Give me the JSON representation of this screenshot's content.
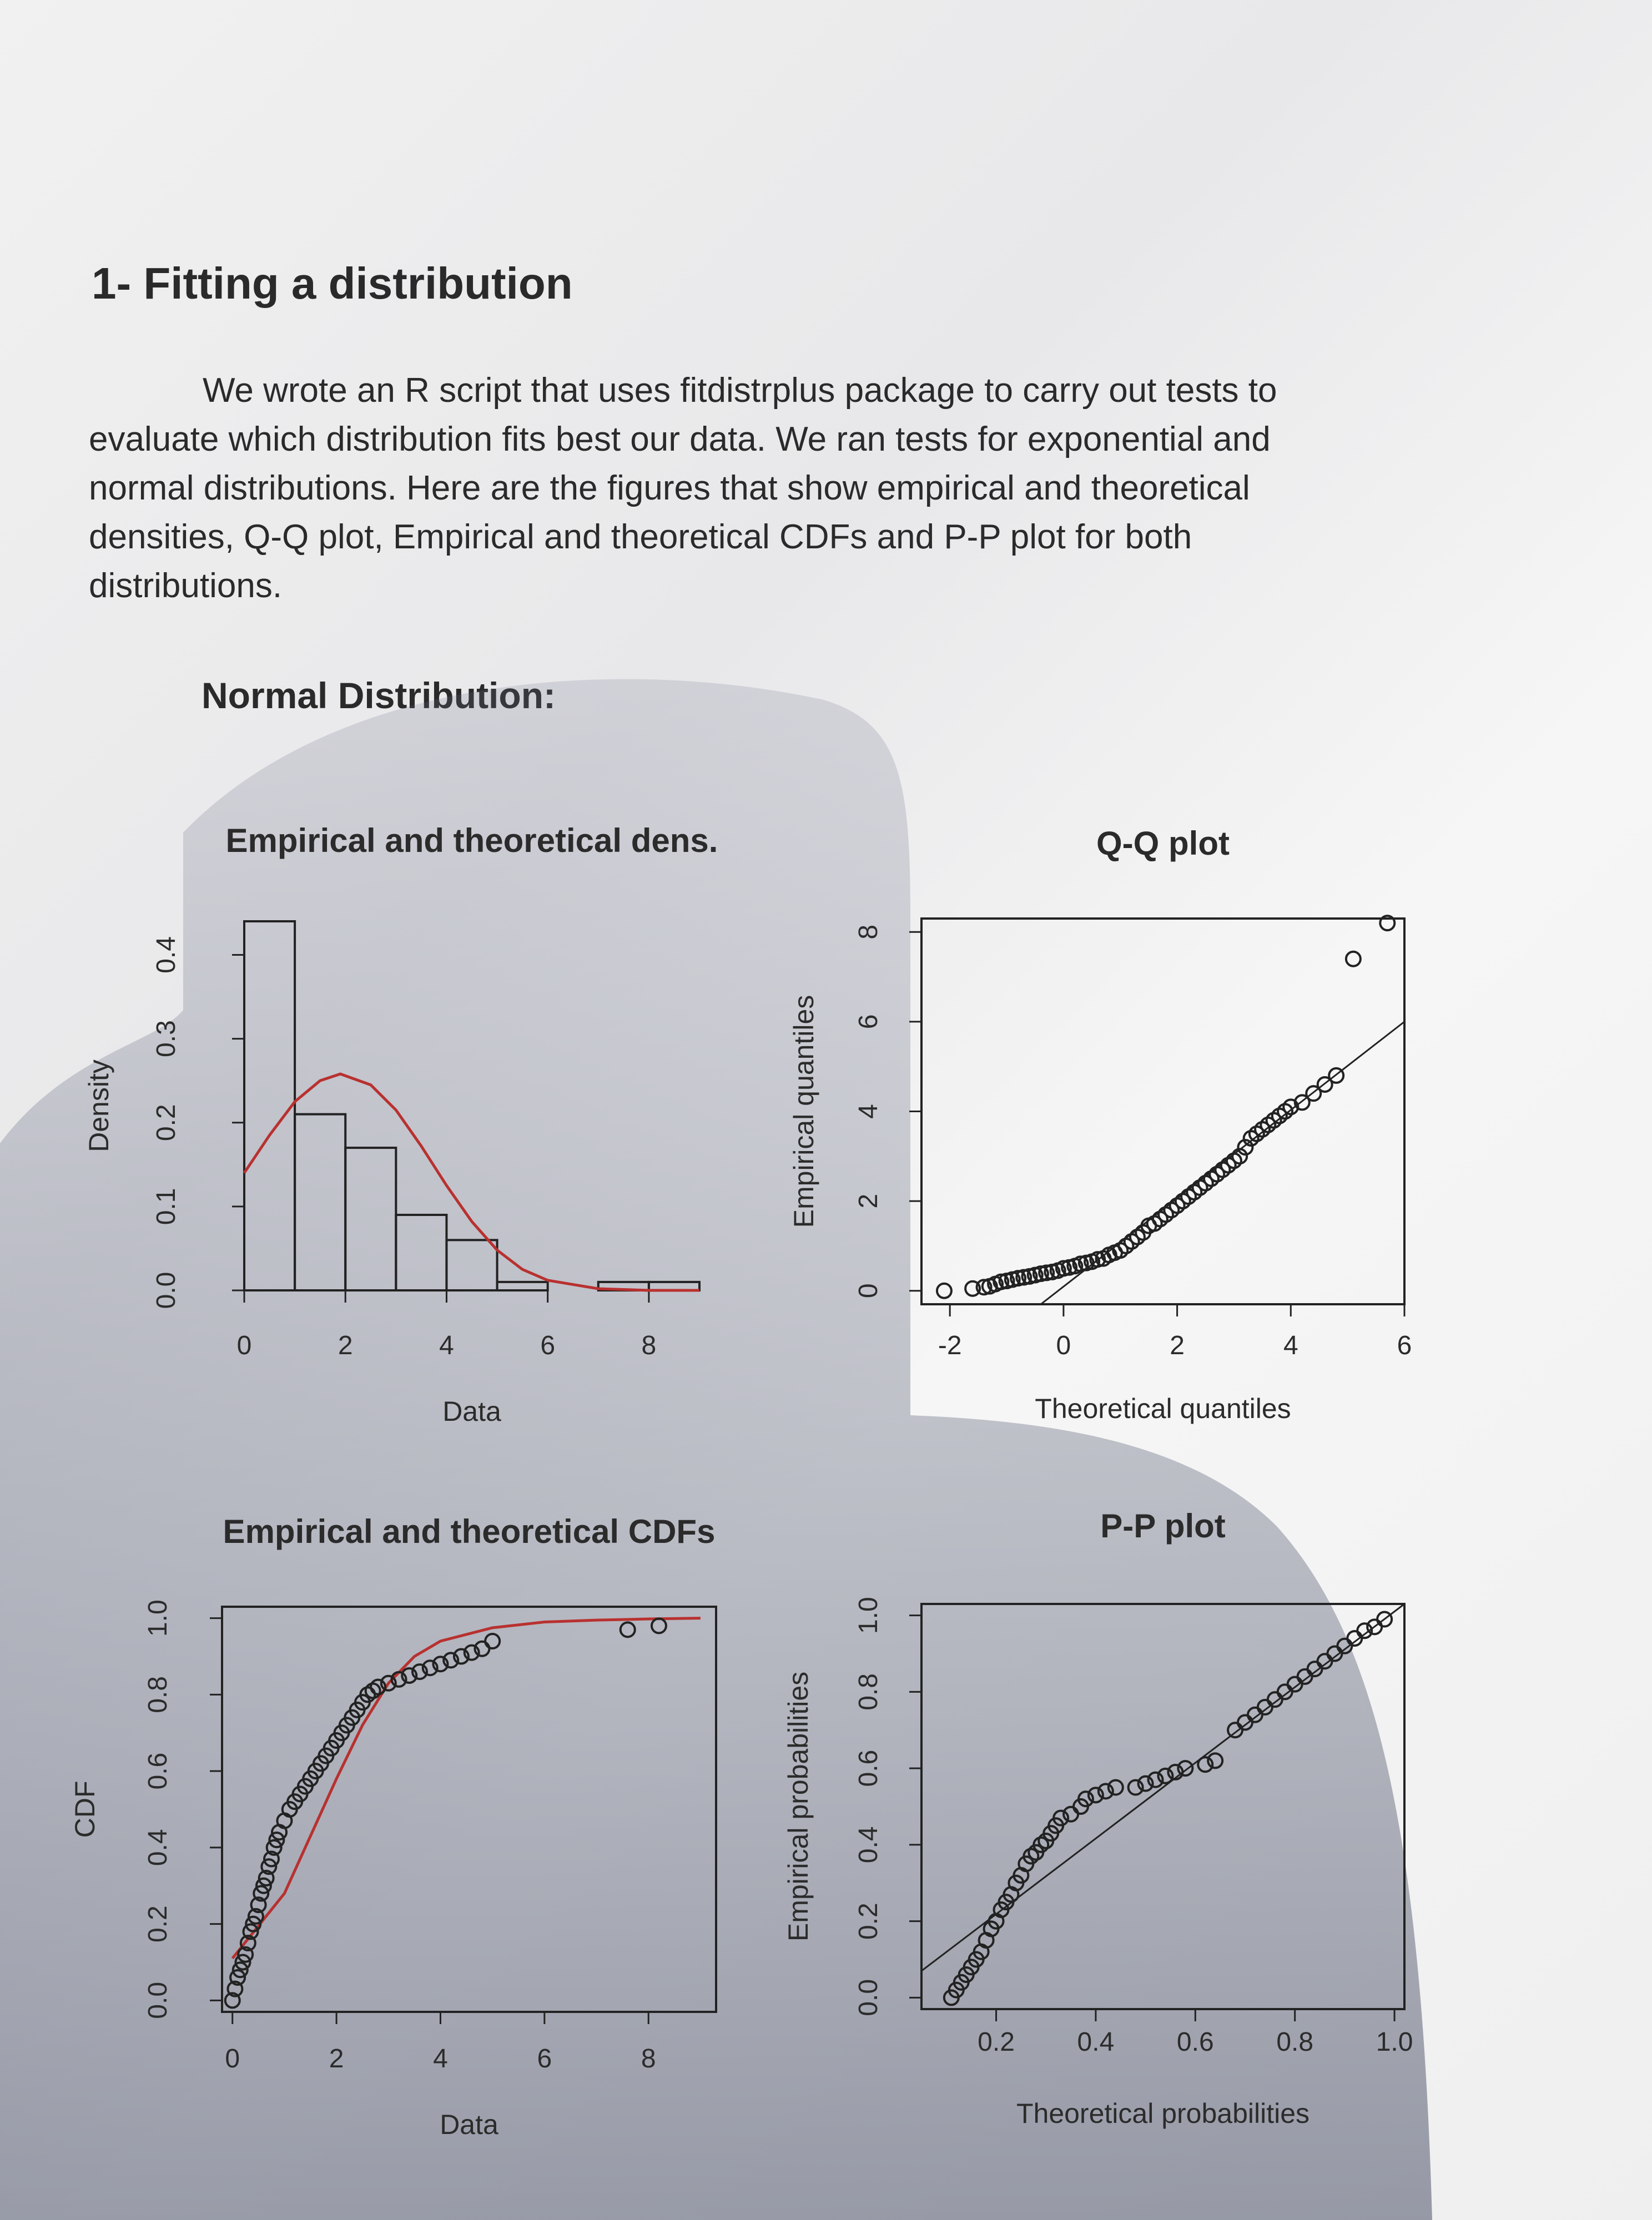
{
  "heading": "1- Fitting a distribution",
  "intro_text": "We wrote an R script that uses fitdistrplus package to carry out tests to evaluate which distribution fits best our data. We ran tests for exponential and normal distributions. Here are the figures that show empirical and theoretical densities, Q-Q plot, Empirical and theoretical CDFs and P-P plot for both distributions.",
  "subheading": "Normal Distribution:",
  "colors": {
    "fit_curve": "#b8312f",
    "ink": "#222222",
    "shadow": "#2f3650"
  },
  "chart_data": [
    {
      "type": "bar",
      "title": "Empirical and theoretical dens.",
      "xlabel": "Data",
      "ylabel": "Density",
      "xlim": [
        0,
        9
      ],
      "ylim": [
        0,
        0.44
      ],
      "xticks": [
        "0",
        "2",
        "4",
        "6",
        "8"
      ],
      "yticks": [
        "0.0",
        "0.1",
        "0.2",
        "0.3",
        "0.4"
      ],
      "bins": [
        [
          0,
          1
        ],
        [
          1,
          2
        ],
        [
          2,
          3
        ],
        [
          3,
          4
        ],
        [
          4,
          5
        ],
        [
          5,
          6
        ],
        [
          6,
          7
        ],
        [
          7,
          8
        ],
        [
          8,
          9
        ]
      ],
      "values": [
        0.44,
        0.21,
        0.17,
        0.09,
        0.06,
        0.01,
        0.0,
        0.01,
        0.01
      ],
      "fit_curve": {
        "x": [
          0,
          0.5,
          1,
          1.5,
          1.9,
          2.5,
          3,
          3.5,
          4,
          4.5,
          5,
          5.5,
          6,
          7,
          8,
          9
        ],
        "y": [
          0.14,
          0.185,
          0.225,
          0.25,
          0.258,
          0.245,
          0.215,
          0.172,
          0.125,
          0.082,
          0.048,
          0.025,
          0.012,
          0.002,
          0.0,
          0.0
        ]
      }
    },
    {
      "type": "scatter",
      "title": "Q-Q plot",
      "xlabel": "Theoretical quantiles",
      "ylabel": "Empirical quantiles",
      "xlim": [
        -2.5,
        6
      ],
      "ylim": [
        -0.3,
        8.3
      ],
      "xticks": [
        "-2",
        "0",
        "2",
        "4",
        "6"
      ],
      "yticks": [
        "0",
        "2",
        "4",
        "6",
        "8"
      ],
      "x": [
        -2.1,
        -1.6,
        -1.4,
        -1.3,
        -1.2,
        -1.1,
        -1.0,
        -0.9,
        -0.8,
        -0.7,
        -0.6,
        -0.5,
        -0.4,
        -0.3,
        -0.2,
        -0.1,
        0.0,
        0.1,
        0.2,
        0.3,
        0.4,
        0.5,
        0.6,
        0.7,
        0.8,
        0.9,
        1.0,
        1.1,
        1.2,
        1.3,
        1.4,
        1.5,
        1.6,
        1.7,
        1.8,
        1.9,
        2.0,
        2.1,
        2.2,
        2.3,
        2.4,
        2.5,
        2.6,
        2.7,
        2.8,
        2.9,
        3.0,
        3.1,
        3.2,
        3.3,
        3.4,
        3.5,
        3.6,
        3.7,
        3.8,
        3.9,
        4.0,
        4.2,
        4.4,
        4.6,
        4.8,
        5.1,
        5.7
      ],
      "y": [
        0.0,
        0.05,
        0.08,
        0.1,
        0.15,
        0.2,
        0.22,
        0.25,
        0.28,
        0.3,
        0.32,
        0.35,
        0.38,
        0.4,
        0.42,
        0.45,
        0.5,
        0.52,
        0.55,
        0.6,
        0.62,
        0.65,
        0.7,
        0.72,
        0.8,
        0.85,
        0.9,
        1.0,
        1.1,
        1.2,
        1.3,
        1.45,
        1.5,
        1.6,
        1.7,
        1.8,
        1.9,
        2.0,
        2.1,
        2.2,
        2.3,
        2.4,
        2.5,
        2.6,
        2.7,
        2.8,
        2.9,
        3.0,
        3.2,
        3.4,
        3.5,
        3.6,
        3.7,
        3.8,
        3.9,
        4.0,
        4.1,
        4.2,
        4.4,
        4.6,
        4.8,
        7.4,
        8.2
      ],
      "reference_line": {
        "x": [
          -0.4,
          6.0
        ],
        "y": [
          -0.3,
          6.0
        ]
      }
    },
    {
      "type": "line",
      "title": "Empirical and theoretical CDFs",
      "xlabel": "Data",
      "ylabel": "CDF",
      "xlim": [
        -0.2,
        9.3
      ],
      "ylim": [
        -0.03,
        1.03
      ],
      "xticks": [
        "0",
        "2",
        "4",
        "6",
        "8"
      ],
      "yticks": [
        "0.0",
        "0.2",
        "0.4",
        "0.6",
        "0.8",
        "1.0"
      ],
      "empirical": {
        "x": [
          0.0,
          0.05,
          0.1,
          0.15,
          0.2,
          0.25,
          0.3,
          0.35,
          0.4,
          0.45,
          0.5,
          0.55,
          0.6,
          0.65,
          0.7,
          0.75,
          0.8,
          0.85,
          0.9,
          1.0,
          1.1,
          1.2,
          1.3,
          1.4,
          1.5,
          1.6,
          1.7,
          1.8,
          1.9,
          2.0,
          2.1,
          2.2,
          2.3,
          2.4,
          2.5,
          2.6,
          2.7,
          2.8,
          3.0,
          3.2,
          3.4,
          3.6,
          3.8,
          4.0,
          4.2,
          4.4,
          4.6,
          4.8,
          5.0,
          7.6,
          8.2
        ],
        "y": [
          0.0,
          0.03,
          0.06,
          0.08,
          0.1,
          0.12,
          0.15,
          0.18,
          0.2,
          0.22,
          0.25,
          0.28,
          0.3,
          0.32,
          0.35,
          0.37,
          0.4,
          0.42,
          0.44,
          0.47,
          0.5,
          0.52,
          0.54,
          0.56,
          0.58,
          0.6,
          0.62,
          0.64,
          0.66,
          0.68,
          0.7,
          0.72,
          0.74,
          0.76,
          0.78,
          0.8,
          0.81,
          0.82,
          0.83,
          0.84,
          0.85,
          0.86,
          0.87,
          0.88,
          0.89,
          0.9,
          0.91,
          0.92,
          0.94,
          0.97,
          0.98
        ]
      },
      "theoretical": {
        "x": [
          0,
          1,
          2,
          2.5,
          3,
          3.5,
          4,
          5,
          6,
          7,
          8,
          9
        ],
        "y": [
          0.11,
          0.28,
          0.58,
          0.72,
          0.83,
          0.9,
          0.94,
          0.975,
          0.99,
          0.995,
          0.998,
          1.0
        ]
      }
    },
    {
      "type": "scatter",
      "title": "P-P plot",
      "xlabel": "Theoretical probabilities",
      "ylabel": "Empirical probabilities",
      "xlim": [
        0.05,
        1.02
      ],
      "ylim": [
        -0.03,
        1.03
      ],
      "xticks": [
        "0.2",
        "0.4",
        "0.6",
        "0.8",
        "1.0"
      ],
      "yticks": [
        "0.0",
        "0.2",
        "0.4",
        "0.6",
        "0.8",
        "1.0"
      ],
      "x": [
        0.11,
        0.12,
        0.13,
        0.14,
        0.15,
        0.16,
        0.17,
        0.18,
        0.19,
        0.2,
        0.21,
        0.22,
        0.23,
        0.24,
        0.25,
        0.26,
        0.27,
        0.28,
        0.29,
        0.3,
        0.31,
        0.32,
        0.33,
        0.35,
        0.37,
        0.38,
        0.4,
        0.42,
        0.44,
        0.48,
        0.5,
        0.52,
        0.54,
        0.56,
        0.58,
        0.62,
        0.64,
        0.68,
        0.7,
        0.72,
        0.74,
        0.76,
        0.78,
        0.8,
        0.82,
        0.84,
        0.86,
        0.88,
        0.9,
        0.92,
        0.94,
        0.96,
        0.98
      ],
      "y": [
        0.0,
        0.02,
        0.04,
        0.06,
        0.08,
        0.1,
        0.12,
        0.15,
        0.18,
        0.2,
        0.23,
        0.25,
        0.27,
        0.3,
        0.32,
        0.35,
        0.37,
        0.38,
        0.4,
        0.41,
        0.43,
        0.45,
        0.47,
        0.48,
        0.5,
        0.52,
        0.53,
        0.54,
        0.55,
        0.55,
        0.56,
        0.57,
        0.58,
        0.59,
        0.6,
        0.61,
        0.62,
        0.7,
        0.72,
        0.74,
        0.76,
        0.78,
        0.8,
        0.82,
        0.84,
        0.86,
        0.88,
        0.9,
        0.92,
        0.94,
        0.96,
        0.97,
        0.99
      ],
      "reference_line": {
        "x": [
          0.05,
          1.02
        ],
        "y": [
          0.07,
          1.03
        ]
      }
    }
  ]
}
